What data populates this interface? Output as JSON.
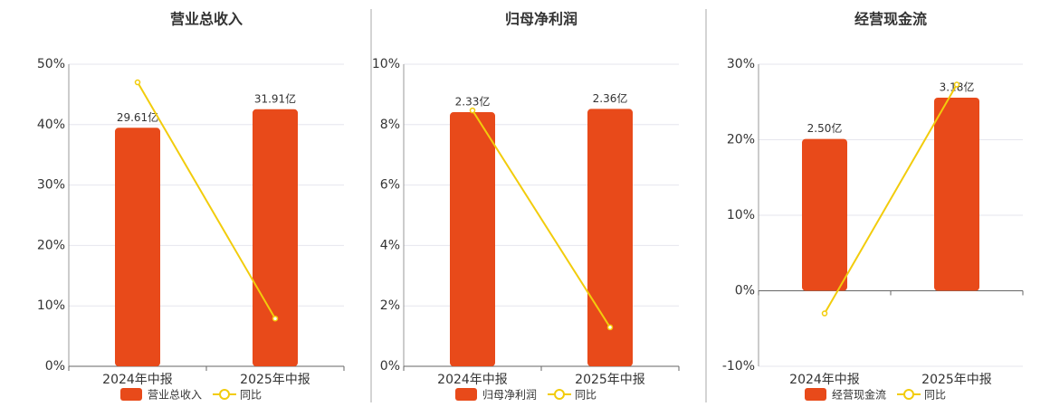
{
  "chart_data": [
    {
      "type": "bar",
      "title": "营业总收入",
      "categories": [
        "2024年中报",
        "2025年中报"
      ],
      "series": [
        {
          "name": "营业总收入",
          "color": "#e84a1a",
          "values": [
            29.61,
            31.91
          ],
          "value_labels": [
            "29.61亿",
            "31.91亿"
          ],
          "axis": "y2"
        },
        {
          "name": "同比",
          "type": "line",
          "color": "#f2cc0c",
          "values": [
            47.0,
            7.9
          ]
        }
      ],
      "ylim": [
        0,
        50
      ],
      "yticks": [
        {
          "value": 0,
          "label": "0%"
        },
        {
          "value": 10,
          "label": "10%"
        },
        {
          "value": 20,
          "label": "20%"
        },
        {
          "value": 30,
          "label": "30%"
        },
        {
          "value": 40,
          "label": "40%"
        },
        {
          "value": 50,
          "label": "50%"
        }
      ],
      "y2lim": [
        0,
        37.5
      ],
      "grid": true
    },
    {
      "type": "bar",
      "title": "归母净利润",
      "categories": [
        "2024年中报",
        "2025年中报"
      ],
      "series": [
        {
          "name": "归母净利润",
          "color": "#e84a1a",
          "values": [
            2.33,
            2.36
          ],
          "value_labels": [
            "2.33亿",
            "2.36亿"
          ],
          "axis": "y2"
        },
        {
          "name": "同比",
          "type": "line",
          "color": "#f2cc0c",
          "values": [
            8.47,
            1.29
          ]
        }
      ],
      "ylim": [
        0,
        10
      ],
      "yticks": [
        {
          "value": 0,
          "label": "0%"
        },
        {
          "value": 2,
          "label": "2%"
        },
        {
          "value": 4,
          "label": "4%"
        },
        {
          "value": 6,
          "label": "6%"
        },
        {
          "value": 8,
          "label": "8%"
        },
        {
          "value": 10,
          "label": "10%"
        }
      ],
      "y2lim": [
        0,
        2.77
      ],
      "grid": true
    },
    {
      "type": "bar",
      "title": "经营现金流",
      "categories": [
        "2024年中报",
        "2025年中报"
      ],
      "series": [
        {
          "name": "经营现金流",
          "color": "#e84a1a",
          "values": [
            2.5,
            3.18
          ],
          "value_labels": [
            "2.50亿",
            "3.18亿"
          ],
          "axis": "y2"
        },
        {
          "name": "同比",
          "type": "line",
          "color": "#f2cc0c",
          "values": [
            -3.0,
            27.3
          ]
        }
      ],
      "ylim": [
        -10,
        30
      ],
      "yticks": [
        {
          "value": -10,
          "label": "-10%"
        },
        {
          "value": 0,
          "label": "0%"
        },
        {
          "value": 10,
          "label": "10%"
        },
        {
          "value": 20,
          "label": "20%"
        },
        {
          "value": 30,
          "label": "30%"
        }
      ],
      "y2lim": [
        -1.243,
        3.73
      ],
      "grid": true
    }
  ]
}
